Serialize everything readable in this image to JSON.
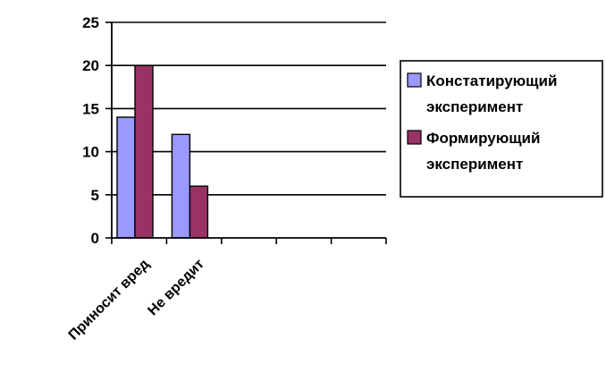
{
  "chart_data": {
    "type": "bar",
    "categories": [
      "Приносит вред",
      "Не вредит",
      "",
      "",
      ""
    ],
    "series": [
      {
        "name": "Констатирующий эксперимент",
        "values": [
          14,
          12,
          null,
          null,
          null
        ],
        "color": "#9999ff"
      },
      {
        "name": "Формирующий эксперимент",
        "values": [
          20,
          6,
          null,
          null,
          null
        ],
        "color": "#993366"
      }
    ],
    "ylim": [
      0,
      25
    ],
    "yticks": [
      "0",
      "5",
      "10",
      "15",
      "20",
      "25"
    ],
    "grid": true,
    "legend_position": "right",
    "legend": [
      {
        "lines": [
          "Констатирующий",
          "эксперимент"
        ],
        "color": "#9999ff"
      },
      {
        "lines": [
          "Формирующий",
          "эксперимент"
        ],
        "color": "#993366"
      }
    ]
  }
}
